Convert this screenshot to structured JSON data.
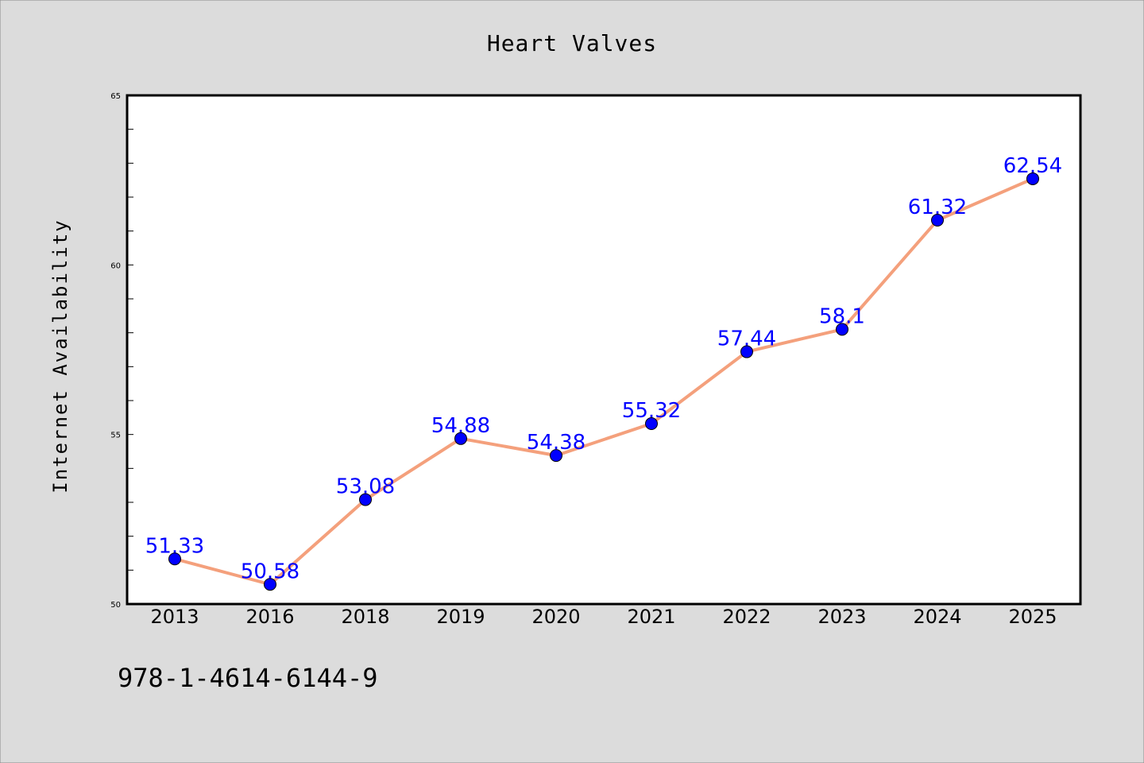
{
  "chart_data": {
    "type": "line",
    "title": "Heart Valves",
    "xlabel": "",
    "ylabel": "Internet Availability",
    "categories": [
      "2013",
      "2016",
      "2018",
      "2019",
      "2020",
      "2021",
      "2022",
      "2023",
      "2024",
      "2025"
    ],
    "series": [
      {
        "values": [
          51.33,
          50.58,
          53.08,
          54.88,
          54.38,
          55.32,
          57.44,
          58.1,
          61.32,
          62.54
        ],
        "color": "#f4a07c",
        "marker_color": "#0000ff"
      }
    ],
    "data_labels": [
      "51.33",
      "50.58",
      "53.08",
      "54.88",
      "54.38",
      "55.32",
      "57.44",
      "58.1",
      "61.32",
      "62.54"
    ],
    "ylim": [
      50,
      65
    ],
    "yticks": [
      "50",
      "55",
      "60",
      "65"
    ],
    "grid": false,
    "legend": "none"
  },
  "footnote": "978-1-4614-6144-9",
  "colors": {
    "background": "#dcdcdc",
    "plot_background": "#ffffff",
    "line": "#f4a07c",
    "marker": "#0000ff",
    "data_label": "#0000ff"
  }
}
